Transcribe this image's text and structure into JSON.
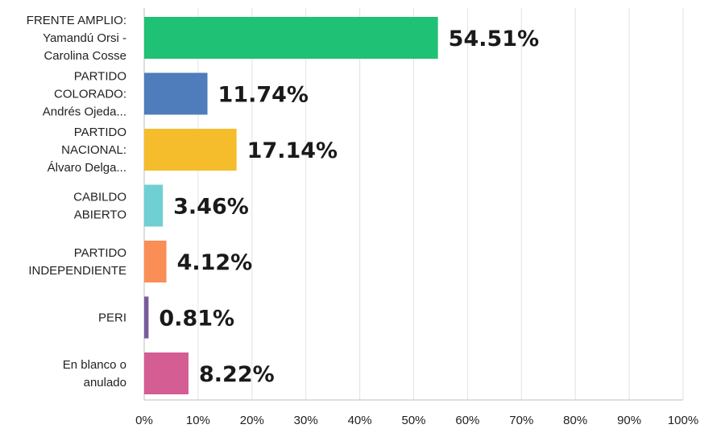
{
  "chart_data": {
    "type": "bar",
    "orientation": "horizontal",
    "categories": [
      [
        "FRENTE AMPLIO:",
        "Yamandú Orsi -",
        "Carolina Cosse"
      ],
      [
        "PARTIDO",
        "COLORADO:",
        "Andrés Ojeda..."
      ],
      [
        "PARTIDO",
        "NACIONAL:",
        "Álvaro Delga..."
      ],
      [
        "CABILDO",
        "ABIERTO"
      ],
      [
        "PARTIDO",
        "INDEPENDIENTE"
      ],
      [
        "PERI"
      ],
      [
        "En blanco o",
        "anulado"
      ]
    ],
    "values": [
      54.51,
      11.74,
      17.14,
      3.46,
      4.12,
      0.81,
      8.22
    ],
    "value_labels": [
      "54.51%",
      "11.74%",
      "17.14%",
      "3.46%",
      "4.12%",
      "0.81%",
      "8.22%"
    ],
    "colors": [
      "#1fc175",
      "#4f7cba",
      "#f5bc2c",
      "#6fcfd3",
      "#f98e57",
      "#7a5a9e",
      "#d45d93"
    ],
    "x_ticks": [
      "0%",
      "10%",
      "20%",
      "30%",
      "40%",
      "50%",
      "60%",
      "70%",
      "80%",
      "90%",
      "100%"
    ],
    "xlim": [
      0,
      100
    ],
    "grid": true,
    "legend": "none",
    "title": "",
    "xlabel": "",
    "ylabel": ""
  }
}
